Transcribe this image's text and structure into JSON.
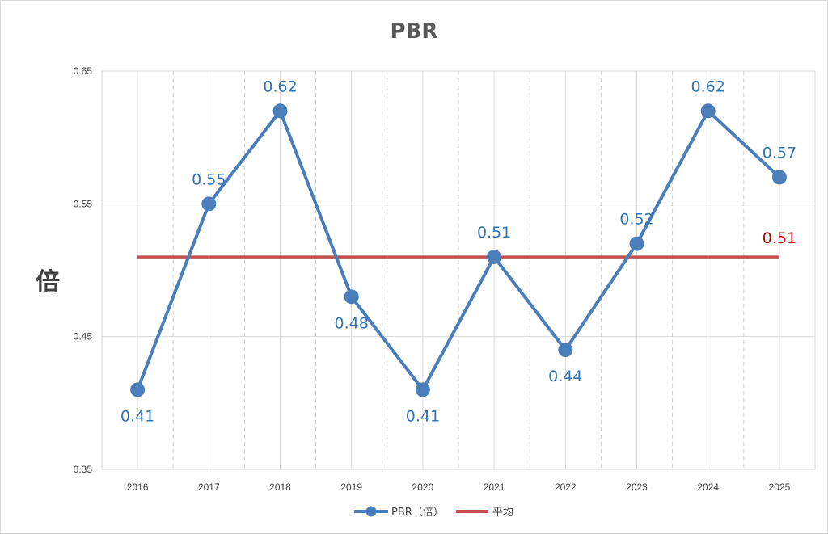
{
  "chart_data": {
    "type": "line",
    "title": "PBR",
    "ylabel": "倍",
    "xlabel": "",
    "categories": [
      "2016",
      "2017",
      "2018",
      "2019",
      "2020",
      "2021",
      "2022",
      "2023",
      "2024",
      "2025"
    ],
    "ylim": [
      0.35,
      0.65
    ],
    "yticks": [
      "0.65",
      "0.55",
      "0.45",
      "0.35"
    ],
    "grid": true,
    "legend_position": "bottom",
    "series": [
      {
        "name": "PBR（倍）",
        "values": [
          0.41,
          0.55,
          0.62,
          0.48,
          0.41,
          0.51,
          0.44,
          0.52,
          0.62,
          0.57
        ],
        "labels": [
          "0.41",
          "0.55",
          "0.62",
          "0.48",
          "0.41",
          "0.51",
          "0.44",
          "0.52",
          "0.62",
          "0.57"
        ],
        "label_pos": [
          "below",
          "above",
          "above",
          "below",
          "below",
          "above",
          "below",
          "above",
          "above",
          "above"
        ],
        "color": "#4a7ebb"
      },
      {
        "name": "平均",
        "values": [
          0.51,
          0.51,
          0.51,
          0.51,
          0.51,
          0.51,
          0.51,
          0.51,
          0.51,
          0.51
        ],
        "end_label": "0.51",
        "color": "#c0504d"
      }
    ]
  }
}
